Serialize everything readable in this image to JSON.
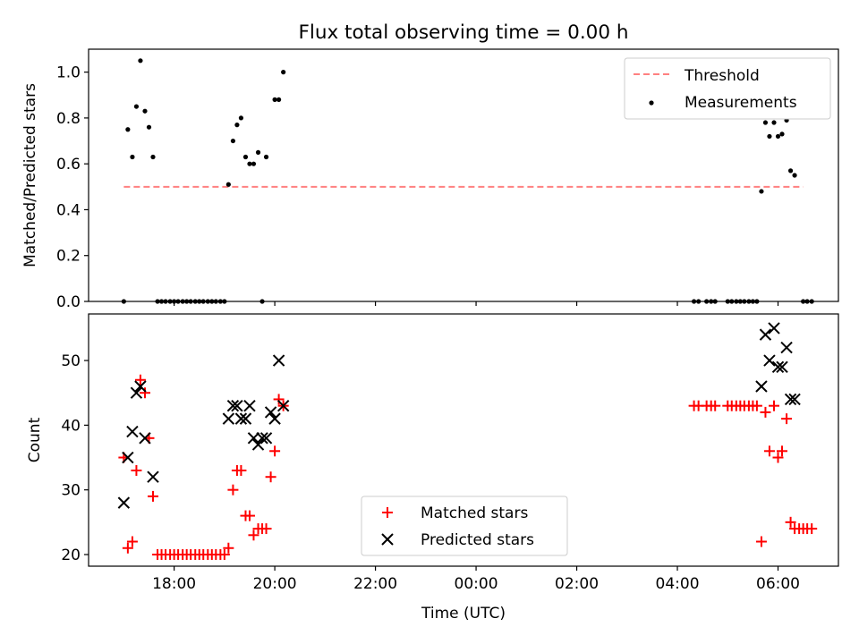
{
  "title": "Flux total observing time = 0.00 h",
  "colors": {
    "threshold": "#ff8080",
    "measurement": "#000000",
    "matched": "#ff0000",
    "predicted": "#000000"
  },
  "chart_data": [
    {
      "type": "scatter",
      "title": "Flux total observing time = 0.00 h",
      "xlabel": "",
      "ylabel": "Matched/Predicted stars",
      "x_unit": "hours since 2000-01-01 00:00 UTC (continuing past 24 into next day)",
      "xlim": [
        16.3,
        31.2
      ],
      "ylim": [
        0,
        1.1
      ],
      "yticks": [
        0.0,
        0.2,
        0.4,
        0.6,
        0.8,
        1.0
      ],
      "ytick_labels": [
        "0.0",
        "0.2",
        "0.4",
        "0.6",
        "0.8",
        "1.0"
      ],
      "legend": {
        "placement": "upper right",
        "entries": [
          "Threshold",
          "Measurements"
        ]
      },
      "threshold": {
        "name": "Threshold",
        "y": 0.5,
        "x": [
          17.0,
          30.5
        ],
        "style": "dashed"
      },
      "series": [
        {
          "name": "Measurements",
          "marker": "dot",
          "points": [
            [
              17.0,
              0.0
            ],
            [
              17.08,
              0.75
            ],
            [
              17.17,
              0.63
            ],
            [
              17.25,
              0.85
            ],
            [
              17.33,
              1.05
            ],
            [
              17.42,
              0.83
            ],
            [
              17.5,
              0.76
            ],
            [
              17.58,
              0.63
            ],
            [
              17.67,
              0.0
            ],
            [
              17.75,
              0.0
            ],
            [
              17.83,
              0.0
            ],
            [
              17.92,
              0.0
            ],
            [
              18.0,
              0.0
            ],
            [
              18.08,
              0.0
            ],
            [
              18.17,
              0.0
            ],
            [
              18.25,
              0.0
            ],
            [
              18.33,
              0.0
            ],
            [
              18.42,
              0.0
            ],
            [
              18.5,
              0.0
            ],
            [
              18.58,
              0.0
            ],
            [
              18.67,
              0.0
            ],
            [
              18.75,
              0.0
            ],
            [
              18.83,
              0.0
            ],
            [
              18.92,
              0.0
            ],
            [
              19.0,
              0.0
            ],
            [
              19.08,
              0.51
            ],
            [
              19.17,
              0.7
            ],
            [
              19.25,
              0.77
            ],
            [
              19.33,
              0.8
            ],
            [
              19.42,
              0.63
            ],
            [
              19.5,
              0.6
            ],
            [
              19.58,
              0.6
            ],
            [
              19.67,
              0.65
            ],
            [
              19.75,
              0.0
            ],
            [
              19.83,
              0.63
            ],
            [
              20.0,
              0.88
            ],
            [
              20.08,
              0.88
            ],
            [
              20.17,
              1.0
            ],
            [
              28.33,
              0.0
            ],
            [
              28.42,
              0.0
            ],
            [
              28.58,
              0.0
            ],
            [
              28.67,
              0.0
            ],
            [
              28.75,
              0.0
            ],
            [
              29.0,
              0.0
            ],
            [
              29.08,
              0.0
            ],
            [
              29.17,
              0.0
            ],
            [
              29.25,
              0.0
            ],
            [
              29.33,
              0.0
            ],
            [
              29.42,
              0.0
            ],
            [
              29.5,
              0.0
            ],
            [
              29.58,
              0.0
            ],
            [
              29.67,
              0.48
            ],
            [
              29.75,
              0.78
            ],
            [
              29.83,
              0.72
            ],
            [
              29.92,
              0.78
            ],
            [
              30.0,
              0.72
            ],
            [
              30.08,
              0.73
            ],
            [
              30.17,
              0.79
            ],
            [
              30.25,
              0.57
            ],
            [
              30.33,
              0.55
            ],
            [
              30.5,
              0.0
            ],
            [
              30.58,
              0.0
            ],
            [
              30.67,
              0.0
            ]
          ]
        }
      ]
    },
    {
      "type": "scatter",
      "title": "",
      "xlabel": "Time (UTC)",
      "ylabel": "Count",
      "x_unit": "hours since 2000-01-01 00:00 UTC (continuing past 24 into next day)",
      "xlim": [
        16.3,
        31.2
      ],
      "ylim": [
        18.2,
        57.2
      ],
      "yticks": [
        20,
        30,
        40,
        50
      ],
      "ytick_labels": [
        "20",
        "30",
        "40",
        "50"
      ],
      "xticks": [
        18,
        20,
        22,
        24,
        26,
        28,
        30
      ],
      "xtick_labels": [
        "18:00",
        "20:00",
        "22:00",
        "00:00",
        "02:00",
        "04:00",
        "06:00"
      ],
      "legend": {
        "placement": "lower center",
        "entries": [
          "Matched stars",
          "Predicted stars"
        ]
      },
      "series": [
        {
          "name": "Matched stars",
          "marker": "plus",
          "points": [
            [
              17.0,
              35
            ],
            [
              17.08,
              21
            ],
            [
              17.17,
              22
            ],
            [
              17.25,
              33
            ],
            [
              17.33,
              47
            ],
            [
              17.42,
              45
            ],
            [
              17.5,
              38
            ],
            [
              17.58,
              29
            ],
            [
              17.67,
              20
            ],
            [
              17.75,
              20
            ],
            [
              17.83,
              20
            ],
            [
              17.92,
              20
            ],
            [
              18.0,
              20
            ],
            [
              18.08,
              20
            ],
            [
              18.17,
              20
            ],
            [
              18.25,
              20
            ],
            [
              18.33,
              20
            ],
            [
              18.42,
              20
            ],
            [
              18.5,
              20
            ],
            [
              18.58,
              20
            ],
            [
              18.67,
              20
            ],
            [
              18.75,
              20
            ],
            [
              18.83,
              20
            ],
            [
              18.92,
              20
            ],
            [
              19.0,
              20
            ],
            [
              19.08,
              21
            ],
            [
              19.17,
              30
            ],
            [
              19.25,
              33
            ],
            [
              19.33,
              33
            ],
            [
              19.42,
              26
            ],
            [
              19.5,
              26
            ],
            [
              19.58,
              23
            ],
            [
              19.67,
              24
            ],
            [
              19.75,
              24
            ],
            [
              19.83,
              24
            ],
            [
              19.92,
              32
            ],
            [
              20.0,
              36
            ],
            [
              20.08,
              44
            ],
            [
              20.17,
              43
            ],
            [
              28.33,
              43
            ],
            [
              28.42,
              43
            ],
            [
              28.58,
              43
            ],
            [
              28.67,
              43
            ],
            [
              28.75,
              43
            ],
            [
              29.0,
              43
            ],
            [
              29.08,
              43
            ],
            [
              29.17,
              43
            ],
            [
              29.25,
              43
            ],
            [
              29.33,
              43
            ],
            [
              29.42,
              43
            ],
            [
              29.5,
              43
            ],
            [
              29.58,
              43
            ],
            [
              29.67,
              22
            ],
            [
              29.75,
              42
            ],
            [
              29.83,
              36
            ],
            [
              29.92,
              43
            ],
            [
              30.0,
              35
            ],
            [
              30.08,
              36
            ],
            [
              30.17,
              41
            ],
            [
              30.25,
              25
            ],
            [
              30.33,
              24
            ],
            [
              30.42,
              24
            ],
            [
              30.5,
              24
            ],
            [
              30.58,
              24
            ],
            [
              30.67,
              24
            ]
          ]
        },
        {
          "name": "Predicted stars",
          "marker": "x",
          "points": [
            [
              17.0,
              28
            ],
            [
              17.08,
              35
            ],
            [
              17.17,
              39
            ],
            [
              17.25,
              45
            ],
            [
              17.33,
              46
            ],
            [
              17.42,
              38
            ],
            [
              17.58,
              32
            ],
            [
              19.08,
              41
            ],
            [
              19.17,
              43
            ],
            [
              19.25,
              43
            ],
            [
              19.33,
              41
            ],
            [
              19.42,
              41
            ],
            [
              19.5,
              43
            ],
            [
              19.58,
              38
            ],
            [
              19.67,
              37
            ],
            [
              19.75,
              38
            ],
            [
              19.83,
              38
            ],
            [
              19.92,
              42
            ],
            [
              20.0,
              41
            ],
            [
              20.08,
              50
            ],
            [
              20.17,
              43
            ],
            [
              29.67,
              46
            ],
            [
              29.75,
              54
            ],
            [
              29.83,
              50
            ],
            [
              29.92,
              55
            ],
            [
              30.0,
              49
            ],
            [
              30.08,
              49
            ],
            [
              30.17,
              52
            ],
            [
              30.25,
              44
            ],
            [
              30.33,
              44
            ]
          ]
        }
      ]
    }
  ]
}
